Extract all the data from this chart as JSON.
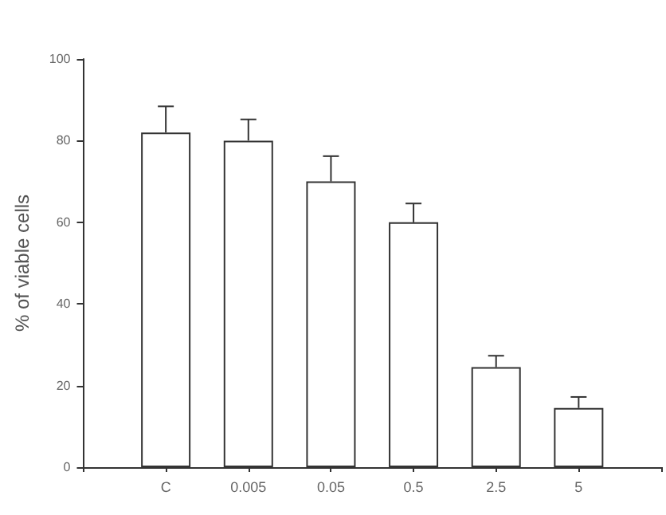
{
  "chart_data": {
    "type": "bar",
    "ylabel": "% of viable cells",
    "categories": [
      "C",
      "0.005",
      "0.05",
      "0.5",
      "2.5",
      "5"
    ],
    "values": [
      82,
      80,
      70,
      60,
      24.5,
      14.5
    ],
    "errors": [
      [
        82,
        88.4
      ],
      [
        80,
        85.2
      ],
      [
        70,
        76.2
      ],
      [
        60,
        64.6
      ],
      [
        24.5,
        27.3
      ],
      [
        14.5,
        17.2
      ]
    ],
    "color": "#ffffff",
    "ylim": [
      0,
      100
    ],
    "yticks": [
      0,
      20,
      40,
      60,
      80,
      100
    ],
    "grid": false
  }
}
